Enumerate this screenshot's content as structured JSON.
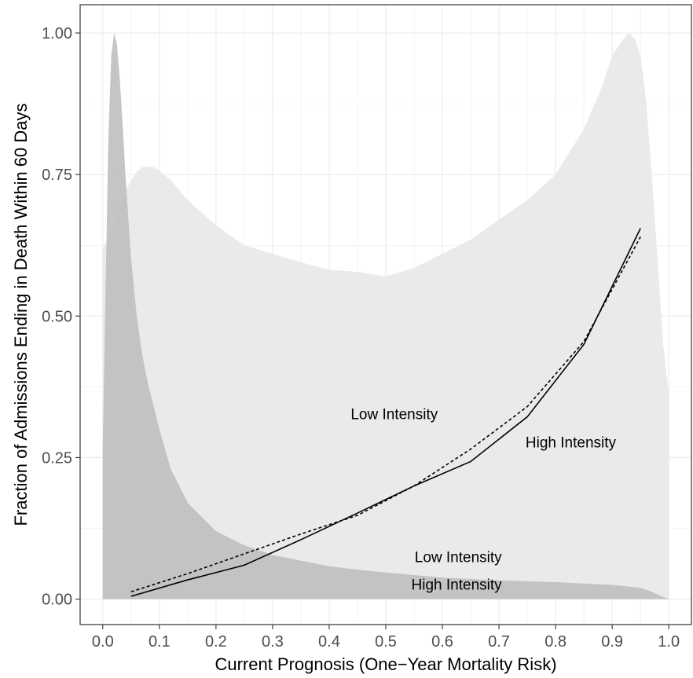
{
  "chart_data": {
    "type": "area",
    "title": "",
    "xlabel": "Current Prognosis (One−Year Mortality Risk)",
    "ylabel": "Fraction of Admissions Ending in Death Within 60 Days",
    "xlim": [
      -0.04,
      1.04
    ],
    "ylim": [
      -0.045,
      1.05
    ],
    "x_ticks": [
      0.0,
      0.1,
      0.2,
      0.3,
      0.4,
      0.5,
      0.6,
      0.7,
      0.8,
      0.9,
      1.0
    ],
    "x_tick_labels": [
      "0.0",
      "0.1",
      "0.2",
      "0.3",
      "0.4",
      "0.5",
      "0.6",
      "0.7",
      "0.8",
      "0.9",
      "1.0"
    ],
    "y_ticks": [
      0.0,
      0.25,
      0.5,
      0.75,
      1.0
    ],
    "y_tick_labels": [
      "0.00",
      "0.25",
      "0.50",
      "0.75",
      "1.00"
    ],
    "grid": true,
    "legend": "none",
    "colors": {
      "panel_border": "#333333",
      "grid": "#ebebeb",
      "light_area": "#e8e8e8",
      "dark_area": "#bdbdbd",
      "line": "#000000"
    },
    "density_areas": [
      {
        "name": "Low Intensity",
        "x": [
          0.0,
          0.01,
          0.02,
          0.03,
          0.04,
          0.05,
          0.06,
          0.07,
          0.08,
          0.09,
          0.1,
          0.12,
          0.15,
          0.2,
          0.25,
          0.3,
          0.35,
          0.4,
          0.45,
          0.5,
          0.55,
          0.6,
          0.65,
          0.7,
          0.75,
          0.8,
          0.85,
          0.88,
          0.9,
          0.92,
          0.93,
          0.94,
          0.95,
          0.96,
          0.97,
          0.98,
          0.99,
          1.0
        ],
        "y": [
          0.62,
          0.64,
          0.66,
          0.69,
          0.72,
          0.74,
          0.755,
          0.763,
          0.765,
          0.763,
          0.757,
          0.74,
          0.705,
          0.66,
          0.625,
          0.61,
          0.595,
          0.582,
          0.578,
          0.57,
          0.585,
          0.61,
          0.635,
          0.67,
          0.705,
          0.75,
          0.83,
          0.9,
          0.96,
          0.99,
          1.0,
          0.99,
          0.96,
          0.88,
          0.75,
          0.6,
          0.45,
          0.36
        ]
      },
      {
        "name": "High Intensity",
        "x": [
          0.0,
          0.005,
          0.01,
          0.015,
          0.02,
          0.025,
          0.03,
          0.035,
          0.04,
          0.05,
          0.06,
          0.07,
          0.08,
          0.1,
          0.12,
          0.15,
          0.2,
          0.25,
          0.3,
          0.35,
          0.4,
          0.45,
          0.5,
          0.6,
          0.7,
          0.8,
          0.9,
          0.95,
          0.97,
          0.99,
          1.0
        ],
        "y": [
          0.27,
          0.55,
          0.82,
          0.96,
          1.0,
          0.98,
          0.92,
          0.84,
          0.75,
          0.6,
          0.5,
          0.43,
          0.38,
          0.3,
          0.23,
          0.17,
          0.12,
          0.095,
          0.078,
          0.068,
          0.058,
          0.052,
          0.047,
          0.038,
          0.033,
          0.03,
          0.025,
          0.02,
          0.013,
          0.004,
          0.0
        ]
      }
    ],
    "series": [
      {
        "name": "Low Intensity",
        "style": "dashed",
        "x": [
          0.05,
          0.15,
          0.25,
          0.35,
          0.45,
          0.55,
          0.65,
          0.75,
          0.85,
          0.95
        ],
        "y": [
          0.013,
          0.045,
          0.08,
          0.115,
          0.148,
          0.2,
          0.265,
          0.34,
          0.455,
          0.64
        ]
      },
      {
        "name": "High Intensity",
        "style": "solid",
        "x": [
          0.05,
          0.15,
          0.25,
          0.35,
          0.45,
          0.55,
          0.65,
          0.75,
          0.85,
          0.95
        ],
        "y": [
          0.005,
          0.034,
          0.06,
          0.105,
          0.152,
          0.2,
          0.243,
          0.322,
          0.45,
          0.655
        ]
      }
    ],
    "annotations": [
      {
        "text": "Low Intensity",
        "x": 0.592,
        "y": 0.318,
        "anchor": "end"
      },
      {
        "text": "High Intensity",
        "x": 0.747,
        "y": 0.268,
        "anchor": "start"
      },
      {
        "text": "Low Intensity",
        "x": 0.705,
        "y": 0.065,
        "anchor": "end"
      },
      {
        "text": "High Intensity",
        "x": 0.705,
        "y": 0.017,
        "anchor": "end"
      }
    ]
  }
}
